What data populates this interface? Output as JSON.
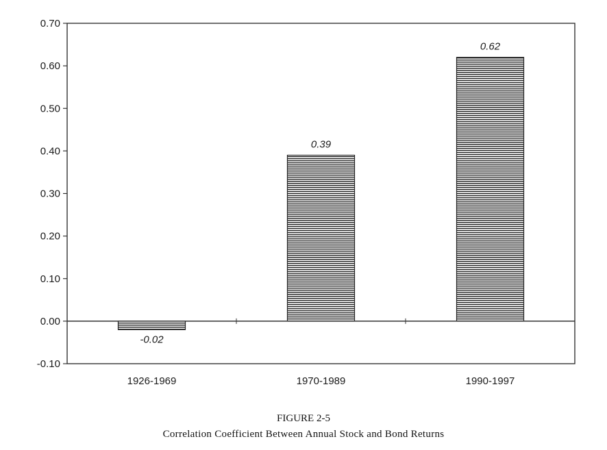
{
  "figure": {
    "number": "FIGURE 2-5",
    "title": "Correlation Coefficient Between Annual Stock and Bond Returns"
  },
  "chart_data": {
    "type": "bar",
    "categories": [
      "1926-1969",
      "1970-1989",
      "1990-1997"
    ],
    "values": [
      -0.02,
      0.39,
      0.62
    ],
    "data_labels": [
      "-0.02",
      "0.39",
      "0.62"
    ],
    "yticks": [
      "0.70",
      "0.60",
      "0.50",
      "0.40",
      "0.30",
      "0.20",
      "0.10",
      "0.00",
      "-0.10"
    ],
    "ylim": [
      -0.1,
      0.7
    ],
    "title": "",
    "xlabel": "",
    "ylabel": "",
    "bar_fill": "horizontal-hatch",
    "grid": false,
    "legend": "none"
  }
}
